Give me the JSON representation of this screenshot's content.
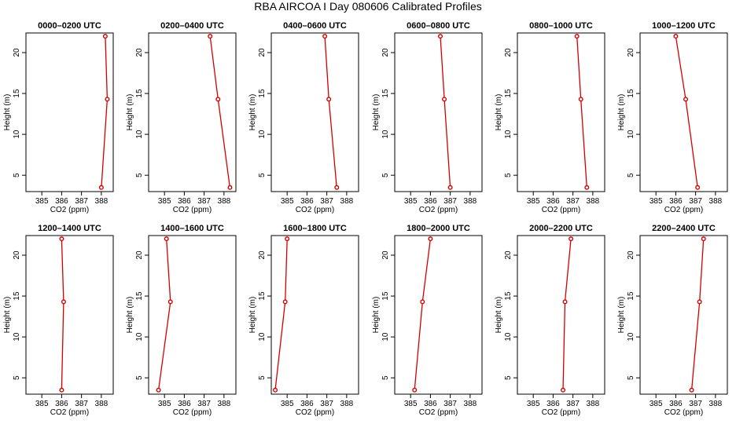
{
  "title": "RBA AIRCOA I  Day 080606  Calibrated Profiles",
  "chart_data": [
    {
      "type": "line",
      "title": "0000–0200 UTC",
      "xlabel": "CO2 (ppm)",
      "ylabel": "Height (m)",
      "x": [
        388.2,
        388.3,
        388.0
      ],
      "y": [
        22,
        14.3,
        3.5
      ],
      "xlim": [
        384.2,
        388.6
      ],
      "ylim": [
        3,
        22.4
      ],
      "xticks": [
        385,
        386,
        387,
        388
      ],
      "yticks": [
        5,
        10,
        15,
        20
      ],
      "color": "#d40000"
    },
    {
      "type": "line",
      "title": "0200–0400 UTC",
      "xlabel": "CO2 (ppm)",
      "ylabel": "Height (m)",
      "x": [
        387.3,
        387.7,
        388.3
      ],
      "y": [
        22,
        14.3,
        3.5
      ],
      "xlim": [
        384.2,
        388.6
      ],
      "ylim": [
        3,
        22.4
      ],
      "xticks": [
        385,
        386,
        387,
        388
      ],
      "yticks": [
        5,
        10,
        15,
        20
      ],
      "color": "#d40000"
    },
    {
      "type": "line",
      "title": "0400–0600 UTC",
      "xlabel": "CO2 (ppm)",
      "ylabel": "Height (m)",
      "x": [
        386.9,
        387.1,
        387.5
      ],
      "y": [
        22,
        14.3,
        3.5
      ],
      "xlim": [
        384.2,
        388.6
      ],
      "ylim": [
        3,
        22.4
      ],
      "xticks": [
        385,
        386,
        387,
        388
      ],
      "yticks": [
        5,
        10,
        15,
        20
      ],
      "color": "#d40000"
    },
    {
      "type": "line",
      "title": "0600–0800 UTC",
      "xlabel": "CO2 (ppm)",
      "ylabel": "Height (m)",
      "x": [
        386.5,
        386.7,
        387.0
      ],
      "y": [
        22,
        14.3,
        3.5
      ],
      "xlim": [
        384.2,
        388.6
      ],
      "ylim": [
        3,
        22.4
      ],
      "xticks": [
        385,
        386,
        387,
        388
      ],
      "yticks": [
        5,
        10,
        15,
        20
      ],
      "color": "#d40000"
    },
    {
      "type": "line",
      "title": "0800–1000 UTC",
      "xlabel": "CO2 (ppm)",
      "ylabel": "Height (m)",
      "x": [
        387.2,
        387.4,
        387.7
      ],
      "y": [
        22,
        14.3,
        3.5
      ],
      "xlim": [
        384.2,
        388.6
      ],
      "ylim": [
        3,
        22.4
      ],
      "xticks": [
        385,
        386,
        387,
        388
      ],
      "yticks": [
        5,
        10,
        15,
        20
      ],
      "color": "#d40000"
    },
    {
      "type": "line",
      "title": "1000–1200 UTC",
      "xlabel": "CO2 (ppm)",
      "ylabel": "Height (m)",
      "x": [
        386.0,
        386.5,
        387.1
      ],
      "y": [
        22,
        14.3,
        3.5
      ],
      "xlim": [
        384.2,
        388.6
      ],
      "ylim": [
        3,
        22.4
      ],
      "xticks": [
        385,
        386,
        387,
        388
      ],
      "yticks": [
        5,
        10,
        15,
        20
      ],
      "color": "#d40000"
    },
    {
      "type": "line",
      "title": "1200–1400 UTC",
      "xlabel": "CO2 (ppm)",
      "ylabel": "Height (m)",
      "x": [
        386.0,
        386.1,
        386.0
      ],
      "y": [
        22,
        14.3,
        3.5
      ],
      "xlim": [
        384.2,
        388.6
      ],
      "ylim": [
        3,
        22.4
      ],
      "xticks": [
        385,
        386,
        387,
        388
      ],
      "yticks": [
        5,
        10,
        15,
        20
      ],
      "color": "#d40000"
    },
    {
      "type": "line",
      "title": "1400–1600 UTC",
      "xlabel": "CO2 (ppm)",
      "ylabel": "Height (m)",
      "x": [
        385.1,
        385.3,
        384.7
      ],
      "y": [
        22,
        14.3,
        3.5
      ],
      "xlim": [
        384.2,
        388.6
      ],
      "ylim": [
        3,
        22.4
      ],
      "xticks": [
        385,
        386,
        387,
        388
      ],
      "yticks": [
        5,
        10,
        15,
        20
      ],
      "color": "#d40000"
    },
    {
      "type": "line",
      "title": "1600–1800 UTC",
      "xlabel": "CO2 (ppm)",
      "ylabel": "Height (m)",
      "x": [
        385.0,
        384.9,
        384.4
      ],
      "y": [
        22,
        14.3,
        3.5
      ],
      "xlim": [
        384.2,
        388.6
      ],
      "ylim": [
        3,
        22.4
      ],
      "xticks": [
        385,
        386,
        387,
        388
      ],
      "yticks": [
        5,
        10,
        15,
        20
      ],
      "color": "#d40000"
    },
    {
      "type": "line",
      "title": "1800–2000 UTC",
      "xlabel": "CO2 (ppm)",
      "ylabel": "Height (m)",
      "x": [
        386.0,
        385.6,
        385.2
      ],
      "y": [
        22,
        14.3,
        3.5
      ],
      "xlim": [
        384.2,
        388.6
      ],
      "ylim": [
        3,
        22.4
      ],
      "xticks": [
        385,
        386,
        387,
        388
      ],
      "yticks": [
        5,
        10,
        15,
        20
      ],
      "color": "#d40000"
    },
    {
      "type": "line",
      "title": "2000–2200 UTC",
      "xlabel": "CO2 (ppm)",
      "ylabel": "Height (m)",
      "x": [
        386.9,
        386.6,
        386.5
      ],
      "y": [
        22,
        14.3,
        3.5
      ],
      "xlim": [
        384.2,
        388.6
      ],
      "ylim": [
        3,
        22.4
      ],
      "xticks": [
        385,
        386,
        387,
        388
      ],
      "yticks": [
        5,
        10,
        15,
        20
      ],
      "color": "#d40000"
    },
    {
      "type": "line",
      "title": "2200–2400 UTC",
      "xlabel": "CO2 (ppm)",
      "ylabel": "Height (m)",
      "x": [
        387.4,
        387.2,
        386.8
      ],
      "y": [
        22,
        14.3,
        3.5
      ],
      "xlim": [
        384.2,
        388.6
      ],
      "ylim": [
        3,
        22.4
      ],
      "xticks": [
        385,
        386,
        387,
        388
      ],
      "yticks": [
        5,
        10,
        15,
        20
      ],
      "color": "#d40000"
    }
  ]
}
